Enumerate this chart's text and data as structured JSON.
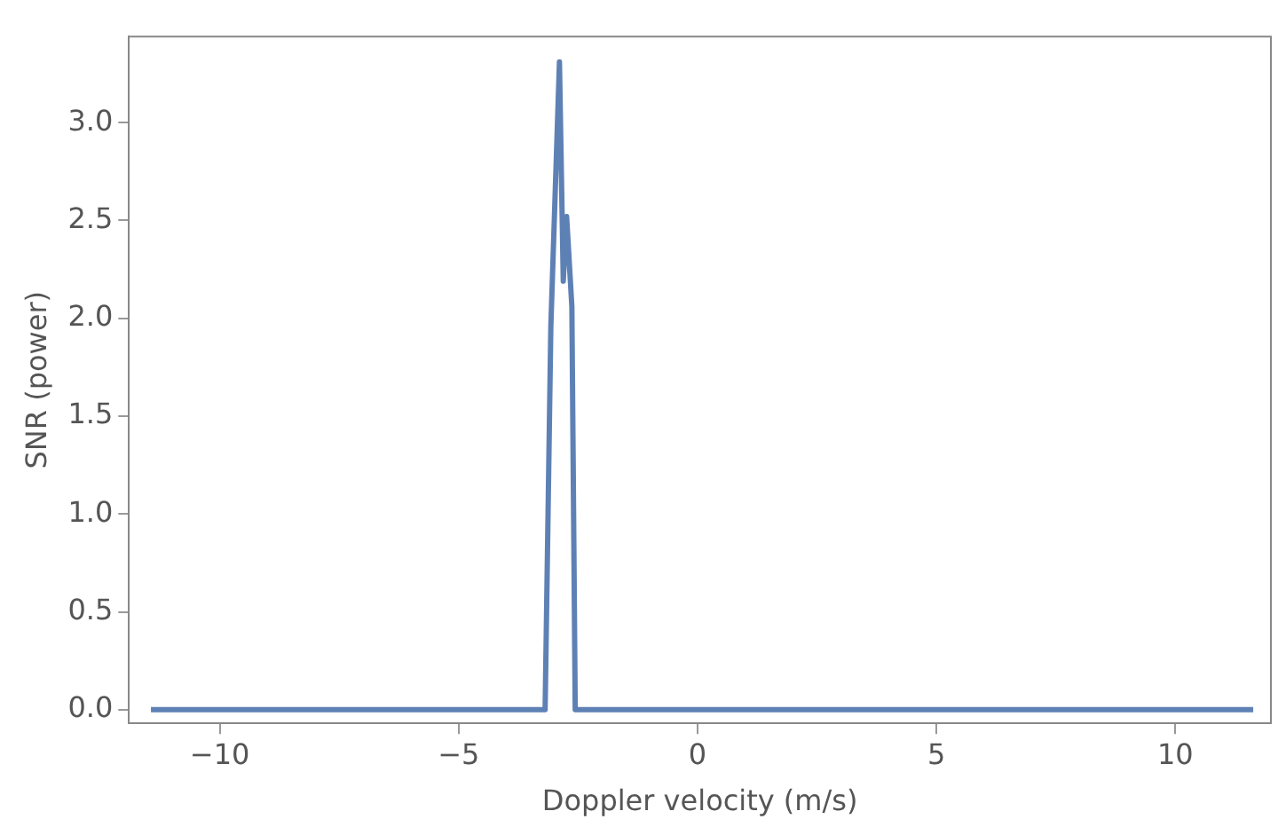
{
  "chart_data": {
    "type": "line",
    "xlabel": "Doppler velocity (m/s)",
    "ylabel": "SNR (power)",
    "series": [
      {
        "color": "#5e81b5",
        "x": [
          -11.44,
          -3.19,
          -3.07,
          -2.89,
          -2.81,
          -2.74,
          -2.63,
          -2.56,
          11.63
        ],
        "values": [
          0,
          0,
          1.96,
          3.31,
          2.19,
          2.52,
          2.06,
          0,
          0
        ]
      }
    ],
    "xlim": [
      -11.9,
      12.0
    ],
    "ylim": [
      -0.07,
      3.44
    ],
    "xticks": [
      {
        "value": -10,
        "label": "−10"
      },
      {
        "value": -5,
        "label": "−5"
      },
      0,
      5,
      10
    ],
    "yticks": [
      {
        "value": 0,
        "label": "0.0"
      },
      0.5,
      {
        "value": 1,
        "label": "1.0"
      },
      1.5,
      {
        "value": 2,
        "label": "2.0"
      },
      2.5,
      {
        "value": 3,
        "label": "3.0"
      }
    ],
    "grid": false,
    "legend": false,
    "marker": "none",
    "line_style": "solid"
  }
}
